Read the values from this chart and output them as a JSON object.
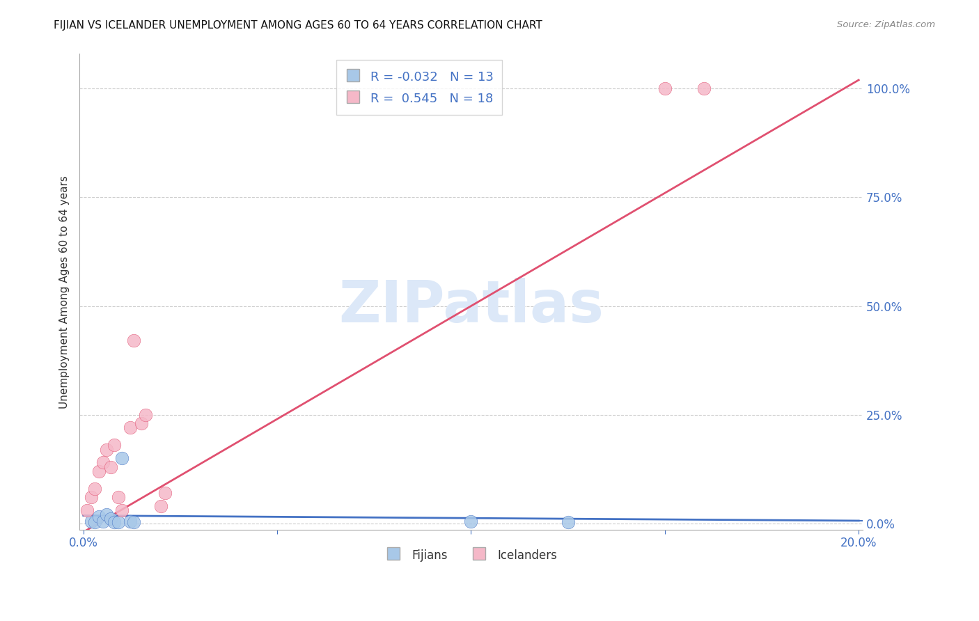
{
  "title": "FIJIAN VS ICELANDER UNEMPLOYMENT AMONG AGES 60 TO 64 YEARS CORRELATION CHART",
  "source": "Source: ZipAtlas.com",
  "ylabel": "Unemployment Among Ages 60 to 64 years",
  "xlim": [
    0.0,
    0.2
  ],
  "ylim": [
    -0.015,
    1.08
  ],
  "yticks_right": [
    0.0,
    0.25,
    0.5,
    0.75,
    1.0
  ],
  "xticks": [
    0.0,
    0.05,
    0.1,
    0.15,
    0.2
  ],
  "fijian_color": "#a8c8e8",
  "icelander_color": "#f5b8c8",
  "fijian_line_color": "#4472c4",
  "icelander_line_color": "#e05070",
  "grid_color": "#cccccc",
  "watermark_color": "#dce8f8",
  "legend_R_fijian": "-0.032",
  "legend_N_fijian": "13",
  "legend_R_icelander": "0.545",
  "legend_N_icelander": "18",
  "fijian_x": [
    0.002,
    0.003,
    0.004,
    0.005,
    0.006,
    0.007,
    0.008,
    0.009,
    0.01,
    0.012,
    0.013,
    0.1,
    0.125
  ],
  "fijian_y": [
    0.005,
    0.003,
    0.015,
    0.005,
    0.02,
    0.01,
    0.002,
    0.002,
    0.15,
    0.005,
    0.002,
    0.005,
    0.003
  ],
  "icelander_x": [
    0.001,
    0.002,
    0.003,
    0.004,
    0.005,
    0.006,
    0.007,
    0.008,
    0.009,
    0.01,
    0.012,
    0.013,
    0.015,
    0.016,
    0.02,
    0.021,
    0.15,
    0.16
  ],
  "icelander_y": [
    0.03,
    0.06,
    0.08,
    0.12,
    0.14,
    0.17,
    0.13,
    0.18,
    0.06,
    0.03,
    0.22,
    0.42,
    0.23,
    0.25,
    0.04,
    0.07,
    1.0,
    1.0
  ],
  "fijian_reg_slope": -0.06,
  "fijian_reg_intercept": 0.018,
  "icelander_reg_slope": 5.2,
  "icelander_reg_intercept": -0.02
}
